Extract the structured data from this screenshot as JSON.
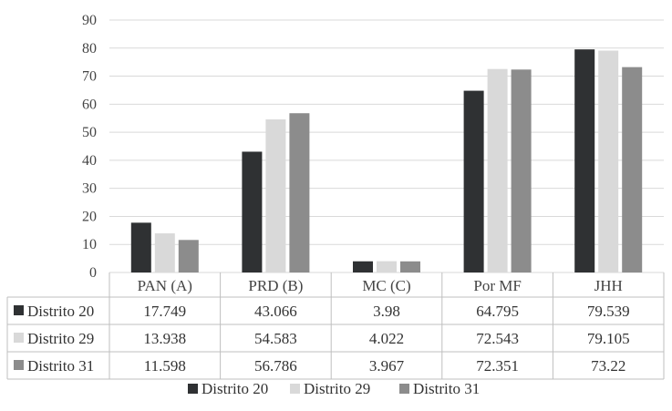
{
  "chart_data": {
    "type": "bar",
    "categories": [
      "PAN (A)",
      "PRD (B)",
      "MC (C)",
      "Por MF",
      "JHH"
    ],
    "series": [
      {
        "name": "Distrito 20",
        "color": "#2f3133",
        "values": [
          17.749,
          43.066,
          3.98,
          64.795,
          79.539
        ]
      },
      {
        "name": "Distrito 29",
        "color": "#d9d9d9",
        "values": [
          13.938,
          54.583,
          4.022,
          72.543,
          79.105
        ]
      },
      {
        "name": "Distrito 31",
        "color": "#8c8c8c",
        "values": [
          11.598,
          56.786,
          3.967,
          72.351,
          73.22
        ]
      }
    ],
    "table_values": [
      [
        "17.749",
        "43.066",
        "3.98",
        "64.795",
        "79.539"
      ],
      [
        "13.938",
        "54.583",
        "4.022",
        "72.543",
        "79.105"
      ],
      [
        "11.598",
        "56.786",
        "3.967",
        "72.351",
        "73.22"
      ]
    ],
    "ylim": [
      0,
      90
    ],
    "yticks": [
      "0",
      "10",
      "20",
      "30",
      "40",
      "50",
      "60",
      "70",
      "80",
      "90"
    ],
    "title": "",
    "xlabel": "",
    "ylabel": "",
    "grid": true,
    "legend_position": "bottom",
    "data_table": true
  }
}
